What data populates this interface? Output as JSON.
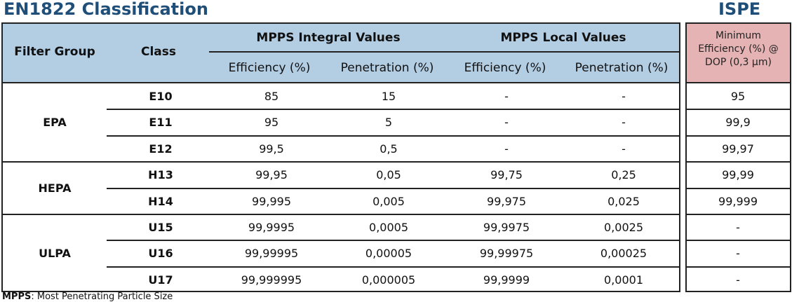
{
  "titles": {
    "main": "EN1822 Classification",
    "ispe": "ISPE"
  },
  "header": {
    "filter_group": "Filter Group",
    "class": "Class",
    "integral": "MPPS Integral Values",
    "local": "MPPS Local Values",
    "efficiency": "Efficiency (%)",
    "penetration": "Penetration (%)"
  },
  "ispe_header": [
    "Minimum",
    "Efficiency (%) @",
    "DOP (0,3 µm)"
  ],
  "groups": [
    "EPA",
    "HEPA",
    "ULPA"
  ],
  "rows": [
    {
      "class": "E10",
      "int_eff": "85",
      "int_pen": "15",
      "loc_eff": "-",
      "loc_pen": "-",
      "ispe": "95"
    },
    {
      "class": "E11",
      "int_eff": "95",
      "int_pen": "5",
      "loc_eff": "-",
      "loc_pen": "-",
      "ispe": "99,9"
    },
    {
      "class": "E12",
      "int_eff": "99,5",
      "int_pen": "0,5",
      "loc_eff": "-",
      "loc_pen": "-",
      "ispe": "99,97"
    },
    {
      "class": "H13",
      "int_eff": "99,95",
      "int_pen": "0,05",
      "loc_eff": "99,75",
      "loc_pen": "0,25",
      "ispe": "99,99"
    },
    {
      "class": "H14",
      "int_eff": "99,995",
      "int_pen": "0,005",
      "loc_eff": "99,975",
      "loc_pen": "0,025",
      "ispe": "99,999"
    },
    {
      "class": "U15",
      "int_eff": "99,9995",
      "int_pen": "0,0005",
      "loc_eff": "99,9975",
      "loc_pen": "0,0025",
      "ispe": "-"
    },
    {
      "class": "U16",
      "int_eff": "99,99995",
      "int_pen": "0,00005",
      "loc_eff": "99,99975",
      "loc_pen": "0,00025",
      "ispe": "-"
    },
    {
      "class": "U17",
      "int_eff": "99,999995",
      "int_pen": "0,000005",
      "loc_eff": "99,9999",
      "loc_pen": "0,0001",
      "ispe": "-"
    }
  ],
  "footer": {
    "abbr": "MPPS",
    "text": ": Most Penetrating Particle Size"
  }
}
